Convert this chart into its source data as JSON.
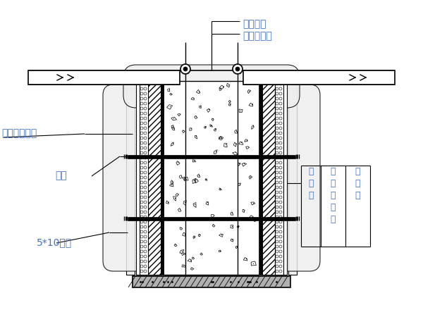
{
  "bg_color": "#ffffff",
  "line_color": "#000000",
  "text_color": "#4472c4",
  "annotations": {
    "yi_ceng_mian_bei": "一层棉被",
    "yi_ceng_su_liao_bu": "一层塑料布",
    "tie_si_bang_zha": "铁丝绑扎牢固",
    "la_gan": "拉杆",
    "fang_mu": "5*10方木",
    "zhu_jiao_ban": "竹\n胶\n板",
    "su_liao_pao_mo": "塑\n料\n泡\n沫\n板",
    "bai_tie_pi": "白\n铁\n皮"
  },
  "concrete_dots": {
    "seed": 42,
    "n": 90
  }
}
